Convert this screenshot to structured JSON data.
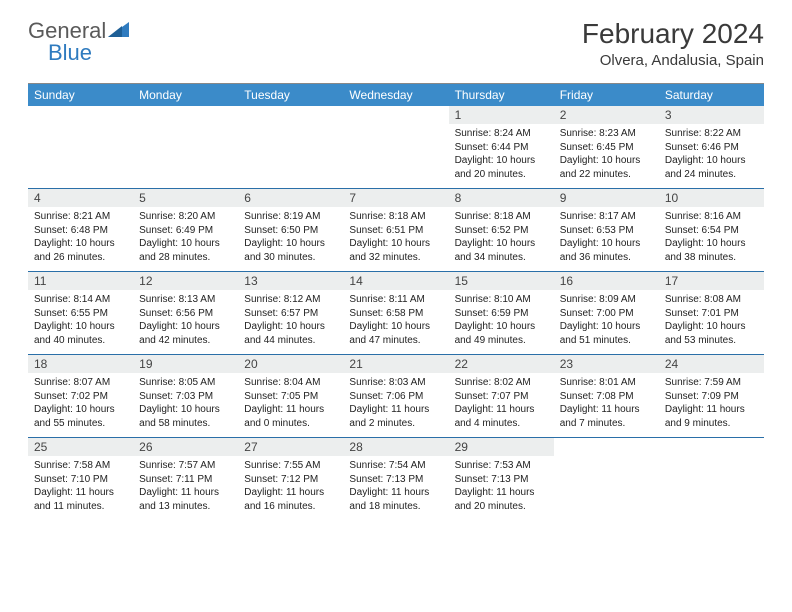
{
  "logo": {
    "part1": "General",
    "part2": "Blue"
  },
  "title": "February 2024",
  "location": "Olvera, Andalusia, Spain",
  "colors": {
    "header_bg": "#3b8bc9",
    "header_text": "#ffffff",
    "daynum_bg": "#eceeee",
    "week_border": "#2a6fa8",
    "logo_gray": "#5a5a5a",
    "logo_blue": "#2f7bbf"
  },
  "day_names": [
    "Sunday",
    "Monday",
    "Tuesday",
    "Wednesday",
    "Thursday",
    "Friday",
    "Saturday"
  ],
  "weeks": [
    [
      null,
      null,
      null,
      null,
      {
        "n": "1",
        "sr": "8:24 AM",
        "ss": "6:44 PM",
        "dl": "10 hours and 20 minutes."
      },
      {
        "n": "2",
        "sr": "8:23 AM",
        "ss": "6:45 PM",
        "dl": "10 hours and 22 minutes."
      },
      {
        "n": "3",
        "sr": "8:22 AM",
        "ss": "6:46 PM",
        "dl": "10 hours and 24 minutes."
      }
    ],
    [
      {
        "n": "4",
        "sr": "8:21 AM",
        "ss": "6:48 PM",
        "dl": "10 hours and 26 minutes."
      },
      {
        "n": "5",
        "sr": "8:20 AM",
        "ss": "6:49 PM",
        "dl": "10 hours and 28 minutes."
      },
      {
        "n": "6",
        "sr": "8:19 AM",
        "ss": "6:50 PM",
        "dl": "10 hours and 30 minutes."
      },
      {
        "n": "7",
        "sr": "8:18 AM",
        "ss": "6:51 PM",
        "dl": "10 hours and 32 minutes."
      },
      {
        "n": "8",
        "sr": "8:18 AM",
        "ss": "6:52 PM",
        "dl": "10 hours and 34 minutes."
      },
      {
        "n": "9",
        "sr": "8:17 AM",
        "ss": "6:53 PM",
        "dl": "10 hours and 36 minutes."
      },
      {
        "n": "10",
        "sr": "8:16 AM",
        "ss": "6:54 PM",
        "dl": "10 hours and 38 minutes."
      }
    ],
    [
      {
        "n": "11",
        "sr": "8:14 AM",
        "ss": "6:55 PM",
        "dl": "10 hours and 40 minutes."
      },
      {
        "n": "12",
        "sr": "8:13 AM",
        "ss": "6:56 PM",
        "dl": "10 hours and 42 minutes."
      },
      {
        "n": "13",
        "sr": "8:12 AM",
        "ss": "6:57 PM",
        "dl": "10 hours and 44 minutes."
      },
      {
        "n": "14",
        "sr": "8:11 AM",
        "ss": "6:58 PM",
        "dl": "10 hours and 47 minutes."
      },
      {
        "n": "15",
        "sr": "8:10 AM",
        "ss": "6:59 PM",
        "dl": "10 hours and 49 minutes."
      },
      {
        "n": "16",
        "sr": "8:09 AM",
        "ss": "7:00 PM",
        "dl": "10 hours and 51 minutes."
      },
      {
        "n": "17",
        "sr": "8:08 AM",
        "ss": "7:01 PM",
        "dl": "10 hours and 53 minutes."
      }
    ],
    [
      {
        "n": "18",
        "sr": "8:07 AM",
        "ss": "7:02 PM",
        "dl": "10 hours and 55 minutes."
      },
      {
        "n": "19",
        "sr": "8:05 AM",
        "ss": "7:03 PM",
        "dl": "10 hours and 58 minutes."
      },
      {
        "n": "20",
        "sr": "8:04 AM",
        "ss": "7:05 PM",
        "dl": "11 hours and 0 minutes."
      },
      {
        "n": "21",
        "sr": "8:03 AM",
        "ss": "7:06 PM",
        "dl": "11 hours and 2 minutes."
      },
      {
        "n": "22",
        "sr": "8:02 AM",
        "ss": "7:07 PM",
        "dl": "11 hours and 4 minutes."
      },
      {
        "n": "23",
        "sr": "8:01 AM",
        "ss": "7:08 PM",
        "dl": "11 hours and 7 minutes."
      },
      {
        "n": "24",
        "sr": "7:59 AM",
        "ss": "7:09 PM",
        "dl": "11 hours and 9 minutes."
      }
    ],
    [
      {
        "n": "25",
        "sr": "7:58 AM",
        "ss": "7:10 PM",
        "dl": "11 hours and 11 minutes."
      },
      {
        "n": "26",
        "sr": "7:57 AM",
        "ss": "7:11 PM",
        "dl": "11 hours and 13 minutes."
      },
      {
        "n": "27",
        "sr": "7:55 AM",
        "ss": "7:12 PM",
        "dl": "11 hours and 16 minutes."
      },
      {
        "n": "28",
        "sr": "7:54 AM",
        "ss": "7:13 PM",
        "dl": "11 hours and 18 minutes."
      },
      {
        "n": "29",
        "sr": "7:53 AM",
        "ss": "7:13 PM",
        "dl": "11 hours and 20 minutes."
      },
      null,
      null
    ]
  ],
  "labels": {
    "sunrise": "Sunrise: ",
    "sunset": "Sunset: ",
    "daylight": "Daylight: "
  }
}
